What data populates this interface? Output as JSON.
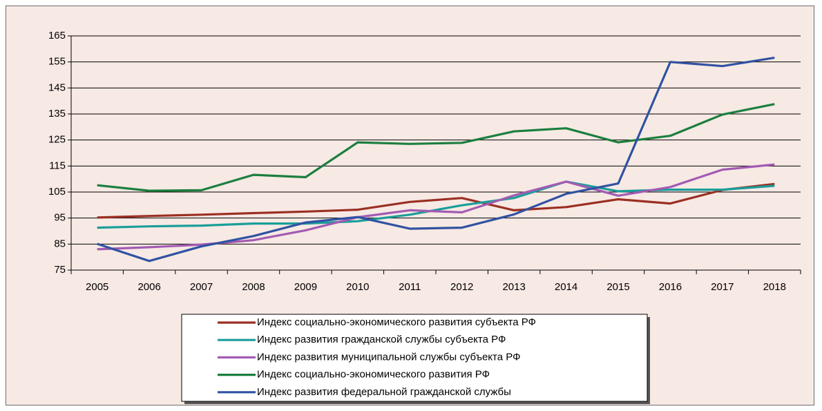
{
  "chart_data": {
    "type": "line",
    "categories": [
      "2005",
      "2006",
      "2007",
      "2008",
      "2009",
      "2010",
      "2011",
      "2012",
      "2013",
      "2014",
      "2015",
      "2016",
      "2017",
      "2018"
    ],
    "ylim": [
      75,
      165
    ],
    "yticks": [
      75,
      85,
      95,
      105,
      115,
      125,
      135,
      145,
      155,
      165
    ],
    "grid": true,
    "legend": "bottom",
    "series": [
      {
        "name": "Индекс социально-экономического развития субъекта РФ",
        "color": "#9a2f22",
        "values": [
          95.2,
          95.8,
          96.3,
          96.9,
          97.5,
          98.2,
          101.2,
          102.7,
          98.0,
          99.2,
          102.2,
          100.6,
          105.8,
          108.1
        ]
      },
      {
        "name": "Индекс развития гражданской службы субъекта РФ",
        "color": "#1a9e9a",
        "values": [
          91.3,
          91.8,
          92.1,
          92.9,
          92.9,
          93.8,
          96.3,
          99.9,
          102.7,
          109.0,
          105.3,
          105.9,
          105.9,
          107.4
        ]
      },
      {
        "name": "Индекс развития муниципальной службы субъекта РФ",
        "color": "#a25bb2",
        "values": [
          83.0,
          83.8,
          84.8,
          86.5,
          90.3,
          95.3,
          98.0,
          97.2,
          103.7,
          109.0,
          103.6,
          106.9,
          113.6,
          115.6
        ]
      },
      {
        "name": "Индекс социально-экономического развития РФ",
        "color": "#1b7f3e",
        "values": [
          107.6,
          105.5,
          105.7,
          111.6,
          110.7,
          124.1,
          123.5,
          123.9,
          128.3,
          129.5,
          124.1,
          126.6,
          134.8,
          138.8
        ]
      },
      {
        "name": "Индекс развития федеральной гражданской службы",
        "color": "#3052a2",
        "values": [
          85.1,
          78.5,
          84.1,
          88.1,
          93.3,
          95.4,
          90.9,
          91.3,
          96.4,
          104.3,
          108.3,
          155.0,
          153.4,
          156.6
        ]
      }
    ]
  }
}
